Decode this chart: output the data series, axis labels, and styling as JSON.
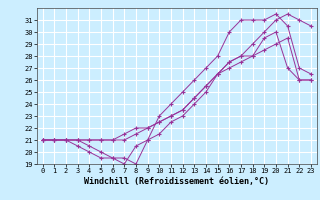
{
  "xlabel": "Windchill (Refroidissement éolien,°C)",
  "ylabel": "",
  "bg_color": "#cceeff",
  "grid_color": "#ffffff",
  "line_color": "#993399",
  "marker": "+",
  "lines": [
    {
      "x": [
        0,
        1,
        2,
        3,
        4,
        5,
        6,
        7,
        8,
        9,
        10,
        11,
        12,
        13,
        14,
        15,
        16,
        17,
        18,
        19,
        20,
        21,
        22,
        23
      ],
      "y": [
        21,
        21,
        21,
        21,
        20.5,
        20,
        19.5,
        19.5,
        19,
        21,
        21.5,
        22.5,
        23,
        24,
        25,
        26.5,
        27.5,
        28,
        28,
        29.5,
        30,
        27,
        26,
        26
      ]
    },
    {
      "x": [
        0,
        1,
        2,
        3,
        4,
        5,
        6,
        7,
        8,
        9,
        10,
        11,
        12,
        13,
        14,
        15,
        16,
        17,
        18,
        19,
        20,
        21,
        22,
        23
      ],
      "y": [
        21,
        21,
        21,
        21,
        21,
        21,
        21,
        21.5,
        22,
        22,
        22.5,
        23,
        23.5,
        24.5,
        25.5,
        26.5,
        27,
        27.5,
        28,
        28.5,
        29,
        29.5,
        26,
        26
      ]
    },
    {
      "x": [
        0,
        1,
        2,
        3,
        4,
        5,
        6,
        7,
        8,
        9,
        10,
        11,
        12,
        13,
        14,
        15,
        16,
        17,
        18,
        19,
        20,
        21,
        22,
        23
      ],
      "y": [
        21,
        21,
        21,
        20.5,
        20,
        19.5,
        19.5,
        19,
        20.5,
        21,
        23,
        24,
        25,
        26,
        27,
        28,
        30,
        31,
        31,
        31,
        31.5,
        30.5,
        27,
        26.5
      ]
    },
    {
      "x": [
        0,
        1,
        2,
        3,
        4,
        5,
        6,
        7,
        8,
        9,
        10,
        11,
        12,
        13,
        14,
        15,
        16,
        17,
        18,
        19,
        20,
        21,
        22,
        23
      ],
      "y": [
        21,
        21,
        21,
        21,
        21,
        21,
        21,
        21,
        21.5,
        22,
        22.5,
        23,
        23.5,
        24.5,
        25.5,
        26.5,
        27.5,
        28,
        29,
        30,
        31,
        31.5,
        31,
        30.5
      ]
    }
  ],
  "xlim": [
    -0.5,
    23.5
  ],
  "ylim": [
    19,
    32
  ],
  "yticks": [
    19,
    20,
    21,
    22,
    23,
    24,
    25,
    26,
    27,
    28,
    29,
    30,
    31
  ],
  "xticks": [
    0,
    1,
    2,
    3,
    4,
    5,
    6,
    7,
    8,
    9,
    10,
    11,
    12,
    13,
    14,
    15,
    16,
    17,
    18,
    19,
    20,
    21,
    22,
    23
  ],
  "tick_fontsize": 5,
  "xlabel_fontsize": 6,
  "markersize": 3,
  "linewidth": 0.7
}
